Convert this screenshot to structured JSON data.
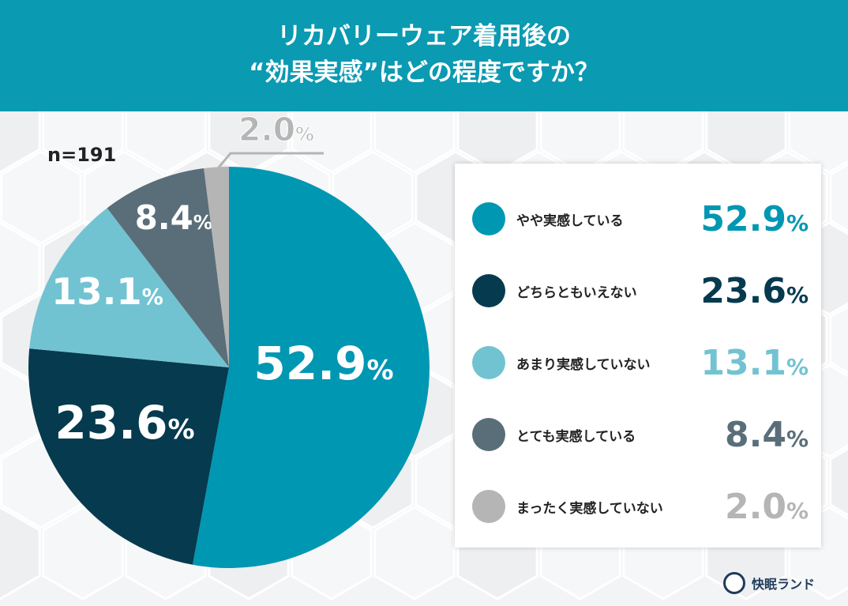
{
  "title_line1": "リカバリーウェア着用後の",
  "title_line2": "“効果実感”はどの程度ですか？",
  "sample": "n=191",
  "brand": "快眠ランド",
  "chart_data": {
    "type": "pie",
    "title": "リカバリーウェア着用後の“効果実感”はどの程度ですか？",
    "start": "top",
    "direction": "clockwise",
    "unit": "%",
    "slices": [
      {
        "label": "やや実感している",
        "value": 52.9,
        "display": "52.9",
        "color": "#0097b2"
      },
      {
        "label": "どちらともいえない",
        "value": 23.6,
        "display": "23.6",
        "color": "#063a4f"
      },
      {
        "label": "あまり実感していない",
        "value": 13.1,
        "display": "13.1",
        "color": "#72c3d2"
      },
      {
        "label": "とても実感している",
        "value": 8.4,
        "display": "8.4",
        "color": "#5a6e7a"
      },
      {
        "label": "まったく実感していない",
        "value": 2.0,
        "display": "2.0",
        "color": "#b5b5b5"
      }
    ],
    "legend": "right"
  }
}
